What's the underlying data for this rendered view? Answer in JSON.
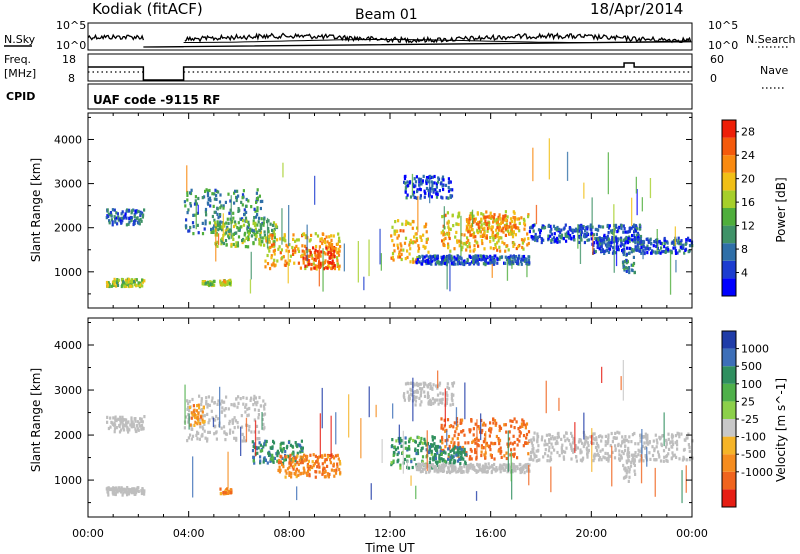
{
  "header": {
    "station": "Kodiak (fitACF)",
    "beam": "Beam 01",
    "date": "18/Apr/2014"
  },
  "panels": {
    "nsky_label": "N.Sky",
    "nsearch_label": "N.Search",
    "nsky_ticks": [
      "10^5",
      "10^0"
    ],
    "nsearch_ticks": [
      "10^5",
      "10^0"
    ],
    "freq_label": "Freq.",
    "freq_unit": "[MHz]",
    "freq_ticks": [
      "18",
      "8"
    ],
    "nave_label": "Nave",
    "nave_ticks": [
      "60",
      "0"
    ],
    "cpid_label": "CPID",
    "cpid_value": "UAF code -9115 RF"
  },
  "colors": {
    "frame": "#000000",
    "ground_scatter": "#bebebe"
  },
  "chart_data": [
    {
      "type": "heatmap",
      "name": "power",
      "ylabel": "Slant Range [km]",
      "xlabel": "Time UT",
      "x_ticks": [
        "00:00",
        "04:00",
        "08:00",
        "12:00",
        "16:00",
        "20:00",
        "00:00"
      ],
      "xlim": [
        0,
        24
      ],
      "y_ticks": [
        1000,
        2000,
        3000,
        4000
      ],
      "ylim": [
        180,
        4600
      ],
      "colorbar": {
        "label": "Power [dB]",
        "ticks": [
          4,
          8,
          12,
          16,
          20,
          24,
          28
        ],
        "range": [
          0,
          30
        ],
        "colors": [
          "#0000ff",
          "#1c3cd0",
          "#2f6fa8",
          "#3f9268",
          "#4fae3c",
          "#a6cf2a",
          "#f1bf16",
          "#f98a10",
          "#f45a0c",
          "#ee1f08"
        ]
      },
      "regions": [
        {
          "t": [
            0.7,
            2.2
          ],
          "r": [
            2100,
            2450
          ],
          "v": 7
        },
        {
          "t": [
            0.7,
            2.2
          ],
          "r": [
            700,
            870
          ],
          "v": 16
        },
        {
          "t": [
            3.8,
            7.0
          ],
          "r": [
            1900,
            2900
          ],
          "v": 10
        },
        {
          "t": [
            5.0,
            7.5
          ],
          "r": [
            1600,
            2200
          ],
          "v": 14
        },
        {
          "t": [
            7.0,
            10.0
          ],
          "r": [
            1100,
            1900
          ],
          "v": 20
        },
        {
          "t": [
            8.5,
            9.8
          ],
          "r": [
            1100,
            1600
          ],
          "v": 26
        },
        {
          "t": [
            12.0,
            13.5
          ],
          "r": [
            1250,
            2200
          ],
          "v": 20
        },
        {
          "t": [
            13.0,
            17.5
          ],
          "r": [
            1200,
            1400
          ],
          "v": 6
        },
        {
          "t": [
            14.0,
            17.5
          ],
          "r": [
            1500,
            2400
          ],
          "v": 20
        },
        {
          "t": [
            15.0,
            17.0
          ],
          "r": [
            1800,
            2300
          ],
          "v": 22
        },
        {
          "t": [
            12.5,
            14.5
          ],
          "r": [
            2700,
            3200
          ],
          "v": 5
        },
        {
          "t": [
            17.5,
            22.0
          ],
          "r": [
            1700,
            2100
          ],
          "v": 6
        },
        {
          "t": [
            20.0,
            24.0
          ],
          "r": [
            1450,
            1800
          ],
          "v": 6
        },
        {
          "t": [
            21.2,
            21.7
          ],
          "r": [
            1000,
            1500
          ],
          "v": 10
        },
        {
          "t": [
            5.2,
            5.7
          ],
          "r": [
            720,
            850
          ],
          "v": 18
        },
        {
          "t": [
            4.5,
            5.0
          ],
          "r": [
            720,
            820
          ],
          "v": 16
        }
      ]
    },
    {
      "type": "heatmap",
      "name": "velocity",
      "ylabel": "Slant Range [km]",
      "xlabel": "Time UT",
      "x_ticks": [
        "00:00",
        "04:00",
        "08:00",
        "12:00",
        "16:00",
        "20:00",
        "00:00"
      ],
      "xlim": [
        0,
        24
      ],
      "y_ticks": [
        1000,
        2000,
        3000,
        4000
      ],
      "ylim": [
        180,
        4600
      ],
      "colorbar": {
        "label": "Velocity [m s^-1]",
        "ticks": [
          "1000",
          "500",
          "100",
          "25",
          "-25",
          "-100",
          "-500",
          "-1000"
        ],
        "colors": [
          "#1f3ca8",
          "#3d6fb8",
          "#2f8f5f",
          "#4fb04a",
          "#8cd04a",
          "#c8c8c8",
          "#f5b428",
          "#f58c1e",
          "#f0641e",
          "#e61e14"
        ]
      },
      "regions": [
        {
          "t": [
            0.7,
            2.2
          ],
          "r": [
            2100,
            2450
          ],
          "v": 0,
          "gs": true
        },
        {
          "t": [
            0.7,
            2.2
          ],
          "r": [
            700,
            870
          ],
          "v": 0,
          "gs": true
        },
        {
          "t": [
            3.8,
            7.0
          ],
          "r": [
            1900,
            2900
          ],
          "v": 0,
          "gs": true
        },
        {
          "t": [
            4.0,
            4.6
          ],
          "r": [
            2200,
            2700
          ],
          "v": -150
        },
        {
          "t": [
            6.5,
            8.5
          ],
          "r": [
            1400,
            1900
          ],
          "v": 200
        },
        {
          "t": [
            7.5,
            10.0
          ],
          "r": [
            1100,
            1600
          ],
          "v": -200
        },
        {
          "t": [
            12.0,
            14.0
          ],
          "r": [
            1300,
            2000
          ],
          "v": 150
        },
        {
          "t": [
            13.0,
            17.5
          ],
          "r": [
            1200,
            1400
          ],
          "v": 0,
          "gs": true
        },
        {
          "t": [
            14.0,
            17.5
          ],
          "r": [
            1500,
            2400
          ],
          "v": -300
        },
        {
          "t": [
            13.5,
            15.0
          ],
          "r": [
            1400,
            1800
          ],
          "v": 200
        },
        {
          "t": [
            12.5,
            14.5
          ],
          "r": [
            2700,
            3200
          ],
          "v": 0,
          "gs": true
        },
        {
          "t": [
            17.5,
            24.0
          ],
          "r": [
            1450,
            2100
          ],
          "v": 0,
          "gs": true
        },
        {
          "t": [
            21.2,
            21.7
          ],
          "r": [
            1000,
            1500
          ],
          "v": 0,
          "gs": true
        },
        {
          "t": [
            5.2,
            5.7
          ],
          "r": [
            720,
            850
          ],
          "v": -200
        }
      ]
    }
  ]
}
